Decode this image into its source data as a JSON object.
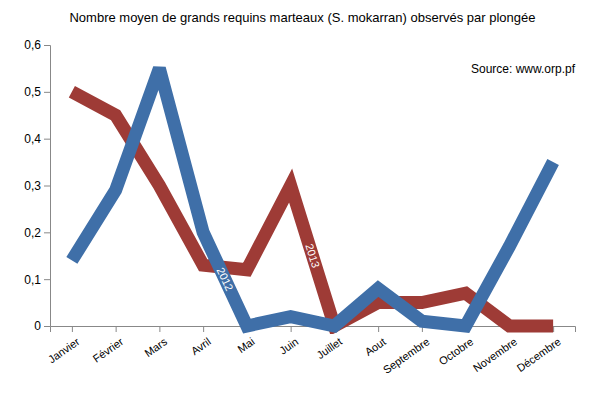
{
  "chart_data": {
    "type": "line",
    "title": "Nombre moyen de grands requins marteaux (S. mokarran) observés par plongée",
    "source": "Source: www.orp.pf",
    "categories": [
      "Janvier",
      "Février",
      "Mars",
      "Avril",
      "Mai",
      "Juin",
      "Juillet",
      "Aout",
      "Septembre",
      "Octobre",
      "Novembre",
      "Décembre"
    ],
    "series": [
      {
        "name": "2012",
        "color": "#3f6fa8",
        "values": [
          0.14,
          0.29,
          0.55,
          0.2,
          0.0,
          0.02,
          0.0,
          0.08,
          0.01,
          0.0,
          0.17,
          0.35
        ]
      },
      {
        "name": "2013",
        "color": "#9e3b36",
        "values": [
          0.5,
          0.45,
          0.3,
          0.13,
          0.12,
          0.3,
          0.0,
          0.05,
          0.05,
          0.07,
          0.0,
          0.0
        ]
      }
    ],
    "ylim": [
      0,
      0.6
    ],
    "yticks": [
      0,
      {
        "value": 0.1,
        "label": "0,1"
      },
      {
        "value": 0.2,
        "label": "0,2"
      },
      {
        "value": 0.3,
        "label": "0,3"
      },
      {
        "value": 0.4,
        "label": "0,4"
      },
      {
        "value": 0.5,
        "label": "0,5"
      },
      {
        "value": 0.6,
        "label": "0,6"
      }
    ],
    "grid": false
  }
}
